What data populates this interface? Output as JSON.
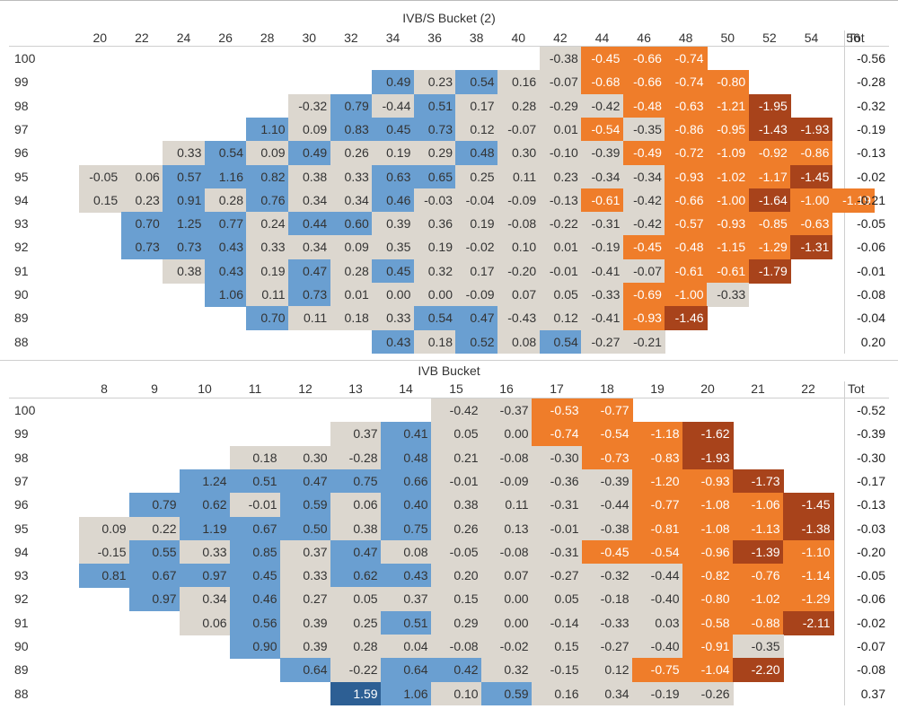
{
  "chart_data": [
    {
      "type": "heatmap",
      "title": "IVB/S Bucket (2)",
      "x_categories": [
        "20",
        "22",
        "24",
        "26",
        "28",
        "30",
        "32",
        "34",
        "36",
        "38",
        "40",
        "42",
        "44",
        "46",
        "48",
        "50",
        "52",
        "54",
        "56"
      ],
      "total_label": "Tot",
      "rows": [
        {
          "label": "100",
          "total": "-0.56",
          "cells": [
            null,
            null,
            null,
            null,
            null,
            null,
            null,
            null,
            null,
            null,
            null,
            "-0.38",
            "-0.45",
            "-0.66",
            "-0.74",
            null,
            null,
            null,
            null
          ]
        },
        {
          "label": "99",
          "total": "-0.28",
          "cells": [
            null,
            null,
            null,
            null,
            null,
            null,
            null,
            "0.49",
            "0.23",
            "0.54",
            "0.16",
            "-0.07",
            "-0.68",
            "-0.66",
            "-0.74",
            "-0.80",
            null,
            null,
            null
          ]
        },
        {
          "label": "98",
          "total": "-0.32",
          "cells": [
            null,
            null,
            null,
            null,
            null,
            "-0.32",
            "0.79",
            "-0.44",
            "0.51",
            "0.17",
            "0.28",
            "-0.29",
            "-0.42",
            "-0.48",
            "-0.63",
            "-1.21",
            "-1.95",
            null,
            null
          ]
        },
        {
          "label": "97",
          "total": "-0.19",
          "cells": [
            null,
            null,
            null,
            null,
            "1.10",
            "0.09",
            "0.83",
            "0.45",
            "0.73",
            "0.12",
            "-0.07",
            "0.01",
            "-0.54",
            "-0.35",
            "-0.86",
            "-0.95",
            "-1.43",
            "-1.93",
            null
          ]
        },
        {
          "label": "96",
          "total": "-0.13",
          "cells": [
            null,
            null,
            "0.33",
            "0.54",
            "0.09",
            "0.49",
            "0.26",
            "0.19",
            "0.29",
            "0.48",
            "0.30",
            "-0.10",
            "-0.39",
            "-0.49",
            "-0.72",
            "-1.09",
            "-0.92",
            "-0.86",
            null
          ]
        },
        {
          "label": "95",
          "total": "-0.02",
          "cells": [
            "-0.05",
            "0.06",
            "0.57",
            "1.16",
            "0.82",
            "0.38",
            "0.33",
            "0.63",
            "0.65",
            "0.25",
            "0.11",
            "0.23",
            "-0.34",
            "-0.34",
            "-0.93",
            "-1.02",
            "-1.17",
            "-1.45",
            null
          ]
        },
        {
          "label": "94",
          "total": "-0.21",
          "cells": [
            "0.15",
            "0.23",
            "0.91",
            "0.28",
            "0.76",
            "0.34",
            "0.34",
            "0.46",
            "-0.03",
            "-0.04",
            "-0.09",
            "-0.13",
            "-0.61",
            "-0.42",
            "-0.66",
            "-1.00",
            "-1.64",
            "-1.00",
            "-1.19"
          ]
        },
        {
          "label": "93",
          "total": "-0.05",
          "cells": [
            null,
            "0.70",
            "1.25",
            "0.77",
            "0.24",
            "0.44",
            "0.60",
            "0.39",
            "0.36",
            "0.19",
            "-0.08",
            "-0.22",
            "-0.31",
            "-0.42",
            "-0.57",
            "-0.93",
            "-0.85",
            "-0.63",
            null
          ]
        },
        {
          "label": "92",
          "total": "-0.06",
          "cells": [
            null,
            "0.73",
            "0.73",
            "0.43",
            "0.33",
            "0.34",
            "0.09",
            "0.35",
            "0.19",
            "-0.02",
            "0.10",
            "0.01",
            "-0.19",
            "-0.45",
            "-0.48",
            "-1.15",
            "-1.29",
            "-1.31",
            null
          ]
        },
        {
          "label": "91",
          "total": "-0.01",
          "cells": [
            null,
            null,
            "0.38",
            "0.43",
            "0.19",
            "0.47",
            "0.28",
            "0.45",
            "0.32",
            "0.17",
            "-0.20",
            "-0.01",
            "-0.41",
            "-0.07",
            "-0.61",
            "-0.61",
            "-1.79",
            null,
            null
          ]
        },
        {
          "label": "90",
          "total": "-0.08",
          "cells": [
            null,
            null,
            null,
            "1.06",
            "0.11",
            "0.73",
            "0.01",
            "0.00",
            "0.00",
            "-0.09",
            "0.07",
            "0.05",
            "-0.33",
            "-0.69",
            "-1.00",
            "-0.33",
            null,
            null,
            null
          ]
        },
        {
          "label": "89",
          "total": "-0.04",
          "cells": [
            null,
            null,
            null,
            null,
            "0.70",
            "0.11",
            "0.18",
            "0.33",
            "0.54",
            "0.47",
            "-0.43",
            "0.12",
            "-0.41",
            "-0.93",
            "-1.46",
            null,
            null,
            null,
            null
          ]
        },
        {
          "label": "88",
          "total": "0.20",
          "cells": [
            null,
            null,
            null,
            null,
            null,
            null,
            null,
            "0.43",
            "0.18",
            "0.52",
            "0.08",
            "0.54",
            "-0.27",
            "-0.21",
            null,
            null,
            null,
            null,
            null
          ]
        }
      ]
    },
    {
      "type": "heatmap",
      "title": "IVB Bucket",
      "x_categories": [
        "8",
        "9",
        "10",
        "11",
        "12",
        "13",
        "14",
        "15",
        "16",
        "17",
        "18",
        "19",
        "20",
        "21",
        "22"
      ],
      "total_label": "Tot",
      "rows": [
        {
          "label": "100",
          "total": "-0.52",
          "cells": [
            null,
            null,
            null,
            null,
            null,
            null,
            null,
            "-0.42",
            "-0.37",
            "-0.53",
            "-0.77",
            null,
            null,
            null,
            null
          ]
        },
        {
          "label": "99",
          "total": "-0.39",
          "cells": [
            null,
            null,
            null,
            null,
            null,
            "0.37",
            "0.41",
            "0.05",
            "0.00",
            "-0.74",
            "-0.54",
            "-1.18",
            "-1.62",
            null,
            null
          ]
        },
        {
          "label": "98",
          "total": "-0.30",
          "cells": [
            null,
            null,
            null,
            "0.18",
            "0.30",
            "-0.28",
            "0.48",
            "0.21",
            "-0.08",
            "-0.30",
            "-0.73",
            "-0.83",
            "-1.93",
            null,
            null
          ]
        },
        {
          "label": "97",
          "total": "-0.17",
          "cells": [
            null,
            null,
            "1.24",
            "0.51",
            "0.47",
            "0.75",
            "0.66",
            "-0.01",
            "-0.09",
            "-0.36",
            "-0.39",
            "-1.20",
            "-0.93",
            "-1.73",
            null
          ]
        },
        {
          "label": "96",
          "total": "-0.13",
          "cells": [
            null,
            "0.79",
            "0.62",
            "-0.01",
            "0.59",
            "0.06",
            "0.40",
            "0.38",
            "0.11",
            "-0.31",
            "-0.44",
            "-0.77",
            "-1.08",
            "-1.06",
            "-1.45"
          ]
        },
        {
          "label": "95",
          "total": "-0.03",
          "cells": [
            "0.09",
            "0.22",
            "1.19",
            "0.67",
            "0.50",
            "0.38",
            "0.75",
            "0.26",
            "0.13",
            "-0.01",
            "-0.38",
            "-0.81",
            "-1.08",
            "-1.13",
            "-1.38"
          ]
        },
        {
          "label": "94",
          "total": "-0.20",
          "cells": [
            "-0.15",
            "0.55",
            "0.33",
            "0.85",
            "0.37",
            "0.47",
            "0.08",
            "-0.05",
            "-0.08",
            "-0.31",
            "-0.45",
            "-0.54",
            "-0.96",
            "-1.39",
            "-1.10"
          ]
        },
        {
          "label": "93",
          "total": "-0.05",
          "cells": [
            "0.81",
            "0.67",
            "0.97",
            "0.45",
            "0.33",
            "0.62",
            "0.43",
            "0.20",
            "0.07",
            "-0.27",
            "-0.32",
            "-0.44",
            "-0.82",
            "-0.76",
            "-1.14"
          ]
        },
        {
          "label": "92",
          "total": "-0.06",
          "cells": [
            null,
            "0.97",
            "0.34",
            "0.46",
            "0.27",
            "0.05",
            "0.37",
            "0.15",
            "0.00",
            "0.05",
            "-0.18",
            "-0.40",
            "-0.80",
            "-1.02",
            "-1.29"
          ]
        },
        {
          "label": "91",
          "total": "-0.02",
          "cells": [
            null,
            null,
            "0.06",
            "0.56",
            "0.39",
            "0.25",
            "0.51",
            "0.29",
            "0.00",
            "-0.14",
            "-0.33",
            "0.03",
            "-0.58",
            "-0.88",
            "-2.11"
          ]
        },
        {
          "label": "90",
          "total": "-0.07",
          "cells": [
            null,
            null,
            null,
            "0.90",
            "0.39",
            "0.28",
            "0.04",
            "-0.08",
            "-0.02",
            "0.15",
            "-0.27",
            "-0.40",
            "-0.91",
            "-0.35",
            null
          ]
        },
        {
          "label": "89",
          "total": "-0.08",
          "cells": [
            null,
            null,
            null,
            null,
            "0.64",
            "-0.22",
            "0.64",
            "0.42",
            "0.32",
            "-0.15",
            "0.12",
            "-0.75",
            "-1.04",
            "-2.20",
            null
          ]
        },
        {
          "label": "88",
          "total": "0.37",
          "cells": [
            null,
            null,
            null,
            null,
            null,
            "1.59",
            "1.06",
            "0.10",
            "0.59",
            "0.16",
            "0.34",
            "-0.19",
            "-0.26",
            null,
            null
          ]
        }
      ]
    }
  ],
  "colors": {
    "neutral": "#dcd7cf",
    "blue": "#6a9fd1",
    "blue_dark": "#2d5f94",
    "orange": "#ef7d2a",
    "orange_dark": "#a8431b",
    "text_light": "#ffffff",
    "text_dark": "#333333"
  }
}
